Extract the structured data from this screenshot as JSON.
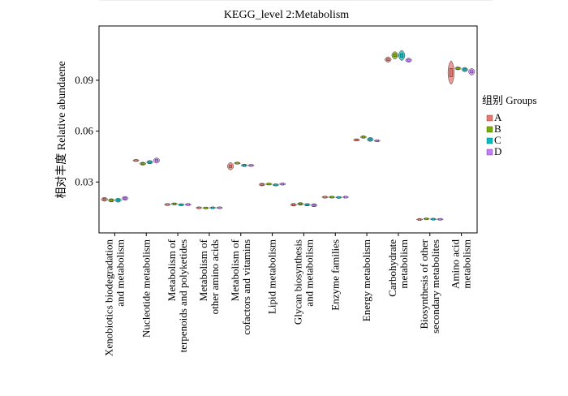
{
  "chart_data": {
    "type": "violin",
    "title": "KEGG_level 2:Metabolism",
    "ylabel": "相对丰度 Relative abundaene",
    "xlabel": "",
    "ylim": [
      0.0,
      0.122
    ],
    "yticks": [
      0.03,
      0.06,
      0.09
    ],
    "ytick_labels": [
      "0.03",
      "0.06",
      "0.09"
    ],
    "grid": false,
    "legend": {
      "title": "组别 Groups",
      "position": "right",
      "entries": [
        "A",
        "B",
        "C",
        "D"
      ]
    },
    "colors": {
      "A": "#E8776E",
      "B": "#7CAE00",
      "C": "#00BFC4",
      "D": "#C77CFF"
    },
    "categories": [
      [
        "Xenobiotics biodegradation",
        "and metabolism"
      ],
      [
        "Nucleotide metabolism"
      ],
      [
        "Metabolism of",
        "terpenoids and polyketides"
      ],
      [
        "Metabolism of",
        "other amino acids"
      ],
      [
        "Metabolism of",
        "cofactors and vitamins"
      ],
      [
        "Lipid metabolism"
      ],
      [
        "Glycan biosynthesis",
        "and metabolism"
      ],
      [
        "Enzyme families"
      ],
      [
        "Energy metabolism"
      ],
      [
        "Carbohydrate",
        "metabolism"
      ],
      [
        "Biosynthesis of other",
        "secondary metabolites"
      ],
      [
        "Amino acid",
        "metabolism"
      ]
    ],
    "series": [
      {
        "name": "A",
        "values": [
          0.0198,
          0.0427,
          0.0167,
          0.0148,
          0.0393,
          0.0285,
          0.0166,
          0.0211,
          0.0548,
          0.1022,
          0.0079,
          0.0945
        ]
      },
      {
        "name": "B",
        "values": [
          0.0192,
          0.0408,
          0.0171,
          0.0147,
          0.0411,
          0.0288,
          0.0171,
          0.0211,
          0.0565,
          0.1047,
          0.0083,
          0.097
        ]
      },
      {
        "name": "C",
        "values": [
          0.0193,
          0.0417,
          0.0166,
          0.0148,
          0.0398,
          0.0283,
          0.0166,
          0.0209,
          0.0551,
          0.1046,
          0.0081,
          0.0963
        ]
      },
      {
        "name": "D",
        "values": [
          0.0204,
          0.0427,
          0.0167,
          0.0148,
          0.0398,
          0.0288,
          0.0163,
          0.0211,
          0.0543,
          0.1018,
          0.008,
          0.095
        ]
      }
    ],
    "spread": [
      {
        "name": "A",
        "values": [
          0.0012,
          0.0006,
          0.0006,
          0.0004,
          0.0022,
          0.0008,
          0.0008,
          0.0006,
          0.0007,
          0.0016,
          0.0004,
          0.007
        ]
      },
      {
        "name": "B",
        "values": [
          0.001,
          0.0009,
          0.0006,
          0.0004,
          0.0006,
          0.0005,
          0.0008,
          0.0005,
          0.0007,
          0.0022,
          0.0003,
          0.0009
        ]
      },
      {
        "name": "C",
        "values": [
          0.0012,
          0.001,
          0.0006,
          0.0004,
          0.0007,
          0.0006,
          0.0007,
          0.0004,
          0.0012,
          0.003,
          0.0004,
          0.0013
        ]
      },
      {
        "name": "D",
        "values": [
          0.0012,
          0.0016,
          0.0006,
          0.0004,
          0.0006,
          0.0006,
          0.0009,
          0.0004,
          0.0005,
          0.0012,
          0.0004,
          0.002
        ]
      }
    ]
  }
}
